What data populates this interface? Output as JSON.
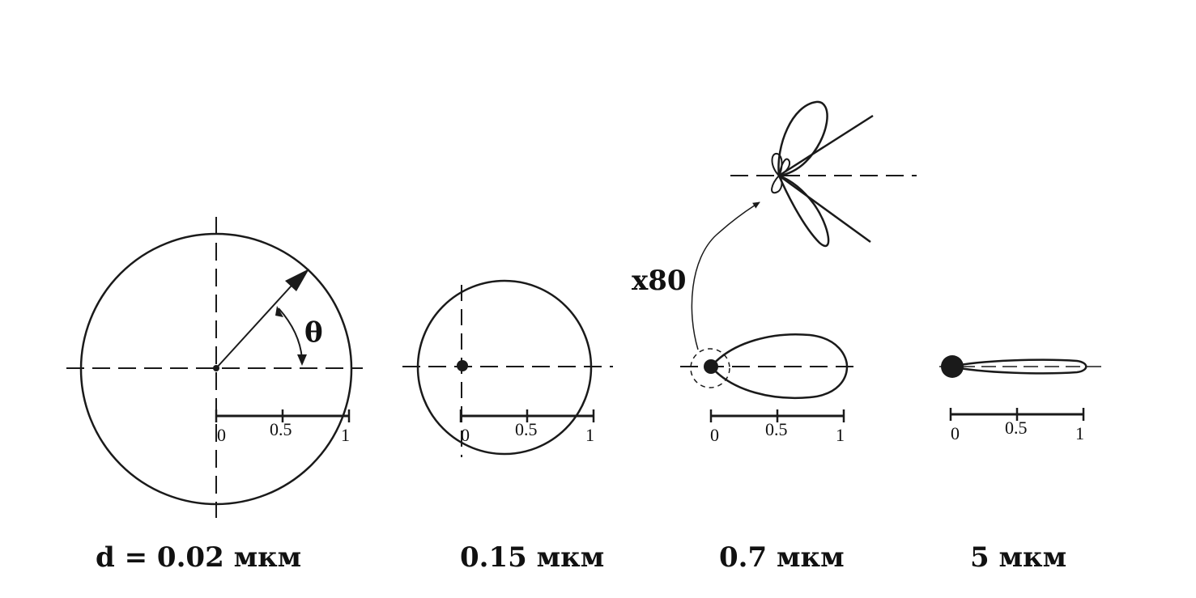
{
  "diagram": {
    "panels": [
      {
        "id": "p1",
        "caption": "d = 0.02 мкм",
        "scale_ticks": [
          "0",
          "0.5",
          "1"
        ],
        "angle_symbol": "θ"
      },
      {
        "id": "p2",
        "caption": "0.15 мкм",
        "scale_ticks": [
          "0",
          "0.5",
          "1"
        ]
      },
      {
        "id": "p3",
        "caption": "0.7 мкм",
        "scale_ticks": [
          "0",
          "0.5",
          "1"
        ],
        "magnification": "x80"
      },
      {
        "id": "p4",
        "caption": "5 мкм",
        "scale_ticks": [
          "0",
          "0.5",
          "1"
        ]
      }
    ],
    "colors": {
      "ink": "#1a1a1a",
      "background": "#ffffff"
    }
  }
}
